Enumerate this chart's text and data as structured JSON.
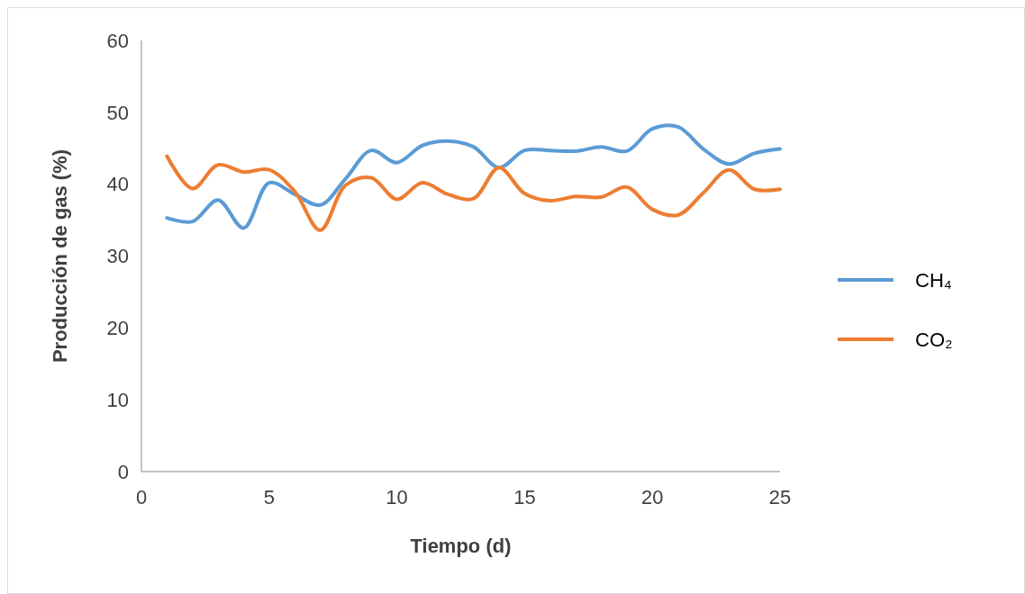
{
  "chart_data": {
    "type": "line",
    "xlabel": "Tiempo (d)",
    "ylabel": "Producción de gas (%)",
    "x": [
      1,
      2,
      3,
      4,
      5,
      6,
      7,
      8,
      9,
      10,
      11,
      12,
      13,
      14,
      15,
      16,
      17,
      18,
      19,
      20,
      21,
      22,
      23,
      24,
      25
    ],
    "series": [
      {
        "name": "CH₄",
        "color": "#5b9bd5",
        "values": [
          35.3,
          34.8,
          37.8,
          33.9,
          40.2,
          38.6,
          37.1,
          40.8,
          44.7,
          43.0,
          45.4,
          46.0,
          45.2,
          42.3,
          44.7,
          44.7,
          44.6,
          45.2,
          44.6,
          47.7,
          48.0,
          44.9,
          42.8,
          44.3,
          44.9
        ]
      },
      {
        "name": "CO₂",
        "color": "#ed7d31",
        "values": [
          43.9,
          39.4,
          42.7,
          41.7,
          42.0,
          39.0,
          33.6,
          39.9,
          40.9,
          37.9,
          40.2,
          38.6,
          38.0,
          42.3,
          38.7,
          37.7,
          38.3,
          38.2,
          39.6,
          36.5,
          35.7,
          38.8,
          42.0,
          39.3,
          39.3
        ]
      }
    ],
    "xlim": [
      0,
      25
    ],
    "xticks": [
      0,
      5,
      10,
      15,
      20,
      25
    ],
    "ylim": [
      0,
      60
    ],
    "yticks": [
      0,
      10,
      20,
      30,
      40,
      50,
      60
    ],
    "grid": false,
    "legend": "right",
    "marker": "none",
    "line_style": "solid"
  }
}
